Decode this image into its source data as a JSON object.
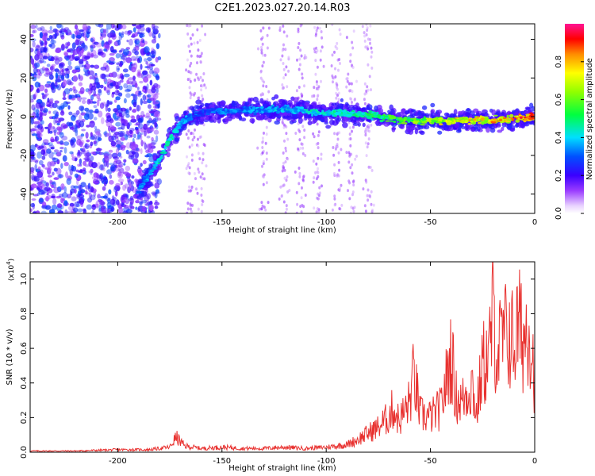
{
  "title": "C2E1.2023.027.20.14.R03",
  "chart_data": [
    {
      "type": "heatmap",
      "xlabel": "Height of straight line (km)",
      "ylabel": "Frequency (Hz)",
      "xlim": [
        -242,
        0
      ],
      "ylim": [
        -50,
        48
      ],
      "xticks": [
        -200,
        -150,
        -100,
        -50,
        0
      ],
      "yticks": [
        -40,
        -20,
        0,
        20,
        40
      ],
      "colorbar": {
        "label": "Normalized spectral amplitude",
        "range": [
          0.0,
          1.0
        ],
        "ticks": [
          0.0,
          0.2,
          0.4,
          0.6,
          0.8
        ],
        "tick_labels": [
          "0.0",
          "0.2",
          "0.4",
          "0.6",
          "0.8"
        ]
      },
      "ridge": {
        "x": [
          -190,
          -185,
          -180,
          -175,
          -170,
          -165,
          -160,
          -150,
          -140,
          -120,
          -100,
          -80,
          -60,
          -40,
          -20,
          0
        ],
        "freq": [
          -38,
          -30,
          -22,
          -12,
          -4,
          0,
          2,
          3,
          3,
          4,
          2,
          1,
          -2,
          -2,
          -2,
          0
        ],
        "amplitude": [
          0.35,
          0.4,
          0.45,
          0.45,
          0.4,
          0.35,
          0.3,
          0.35,
          0.35,
          0.4,
          0.45,
          0.5,
          0.6,
          0.75,
          0.8,
          0.9
        ]
      },
      "noise_region": {
        "x_from": -242,
        "x_to": -180,
        "amplitude": [
          0.1,
          0.3
        ]
      }
    },
    {
      "type": "line",
      "xlabel": "Height of straight line (km)",
      "ylabel": "SNR (10 * v/v)",
      "y_multiplier_label": "(x10",
      "y_multiplier_exponent": "4",
      "y_multiplier_close": ")",
      "xlim": [
        -242,
        0
      ],
      "ylim": [
        0,
        1.1
      ],
      "xticks": [
        -200,
        -150,
        -100,
        -50,
        0
      ],
      "yticks": [
        0.0,
        0.2,
        0.4,
        0.6,
        0.8,
        1.0
      ],
      "ytick_labels": [
        "0.0",
        "0.2",
        "0.4",
        "0.6",
        "0.8",
        "1.0"
      ],
      "series": [
        {
          "color": "#e8312f",
          "x": [
            -242,
            -220,
            -200,
            -185,
            -175,
            -172,
            -168,
            -160,
            -150,
            -140,
            -130,
            -120,
            -110,
            -100,
            -95,
            -90,
            -85,
            -80,
            -75,
            -70,
            -68,
            -65,
            -60,
            -58,
            -55,
            -50,
            -45,
            -42,
            -40,
            -38,
            -35,
            -30,
            -28,
            -25,
            -22,
            -20,
            -18,
            -15,
            -12,
            -10,
            -8,
            -5,
            -3,
            -1,
            0
          ],
          "y": [
            0.01,
            0.01,
            0.02,
            0.02,
            0.04,
            0.12,
            0.05,
            0.03,
            0.04,
            0.03,
            0.03,
            0.04,
            0.03,
            0.04,
            0.05,
            0.06,
            0.1,
            0.15,
            0.2,
            0.28,
            0.35,
            0.25,
            0.4,
            0.62,
            0.3,
            0.28,
            0.35,
            0.6,
            0.8,
            0.45,
            0.4,
            0.55,
            0.3,
            0.7,
            0.75,
            1.1,
            0.8,
            0.9,
            0.95,
            0.85,
            1.0,
            0.9,
            1.1,
            0.75,
            0.6
          ]
        }
      ]
    }
  ]
}
